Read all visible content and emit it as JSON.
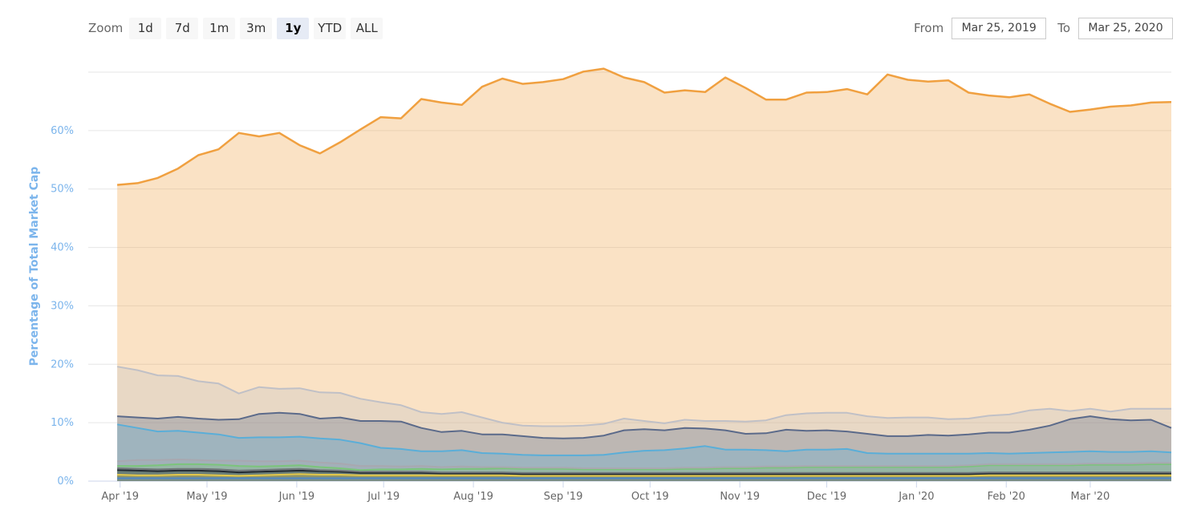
{
  "toolbar": {
    "zoom_label": "Zoom",
    "buttons": [
      "1d",
      "7d",
      "1m",
      "3m",
      "1y",
      "YTD",
      "ALL"
    ],
    "active": "1y"
  },
  "range": {
    "from_label": "From",
    "from_value": "Mar 25, 2019",
    "to_label": "To",
    "to_value": "Mar 25, 2020"
  },
  "chart_data": {
    "type": "area",
    "title": "",
    "ylabel": "Percentage of Total Market Cap",
    "xlabel": "",
    "ylim": [
      0,
      70
    ],
    "yticks": [
      0,
      10,
      20,
      30,
      40,
      50,
      60
    ],
    "ytick_labels": [
      "0%",
      "10%",
      "20%",
      "30%",
      "40%",
      "50%",
      "60%"
    ],
    "x_start": "2019-03-31",
    "x_step_days": 7,
    "x_end": "2020-03-22",
    "x_tick_dates": [
      "2019-04-01",
      "2019-05-01",
      "2019-06-01",
      "2019-07-01",
      "2019-08-01",
      "2019-09-01",
      "2019-10-01",
      "2019-11-01",
      "2019-12-01",
      "2020-01-01",
      "2020-02-01",
      "2020-03-01"
    ],
    "x_tick_labels": [
      "Apr '19",
      "May '19",
      "Jun '19",
      "Jul '19",
      "Aug '19",
      "Sep '19",
      "Oct '19",
      "Nov '19",
      "Dec '19",
      "Jan '20",
      "Feb '20",
      "Mar '20"
    ],
    "grid": true,
    "stacked": true,
    "legend": "none",
    "series": [
      {
        "color": "#f0a040",
        "values": [
          31.1,
          32.0,
          33.8,
          35.5,
          38.7,
          40.1,
          44.6,
          42.9,
          43.8,
          41.6,
          40.9,
          42.9,
          46.1,
          48.8,
          49.1,
          53.6,
          53.3,
          52.6,
          56.6,
          58.9,
          58.5,
          58.9,
          59.4,
          60.6,
          60.8,
          58.4,
          58.0,
          56.6,
          56.4,
          56.3,
          58.8,
          57.1,
          54.9,
          54.0,
          54.9,
          54.9,
          55.4,
          55.1,
          58.8,
          57.8,
          57.5,
          58.0,
          55.8,
          54.8,
          54.3,
          54.1,
          52.2,
          51.2,
          51.2,
          52.2,
          51.9,
          52.4,
          52.5
        ]
      },
      {
        "color": "#c0c0c6",
        "values": [
          8.5,
          8.1,
          7.4,
          7.0,
          6.4,
          6.2,
          4.4,
          4.6,
          4.1,
          4.4,
          4.5,
          4.2,
          3.8,
          3.2,
          2.8,
          2.7,
          3.1,
          3.2,
          2.9,
          2.0,
          1.8,
          2.0,
          2.1,
          2.1,
          2.0,
          2.0,
          1.4,
          1.2,
          1.4,
          1.3,
          1.6,
          2.1,
          2.2,
          2.5,
          3.0,
          3.0,
          3.2,
          3.0,
          3.1,
          3.2,
          3.0,
          2.8,
          2.7,
          2.9,
          3.1,
          3.3,
          2.9,
          1.4,
          1.3,
          1.3,
          2.0,
          1.9,
          3.3
        ]
      },
      {
        "color": "#5b6a8a",
        "values": [
          1.4,
          1.8,
          2.2,
          2.4,
          2.4,
          2.5,
          3.2,
          4.0,
          4.2,
          3.9,
          3.4,
          3.8,
          3.8,
          4.6,
          4.7,
          4.0,
          3.3,
          3.3,
          3.2,
          3.3,
          3.2,
          3.0,
          2.9,
          3.0,
          3.3,
          3.8,
          3.7,
          3.4,
          3.5,
          3.0,
          3.3,
          2.7,
          2.9,
          3.7,
          3.2,
          3.3,
          3.0,
          3.3,
          3.0,
          3.0,
          3.2,
          3.1,
          3.3,
          3.5,
          3.6,
          4.0,
          4.6,
          5.6,
          6.0,
          5.6,
          5.4,
          5.4,
          4.2
        ]
      },
      {
        "color": "#5aaed8",
        "values": [
          6.3,
          5.5,
          4.9,
          4.9,
          4.7,
          4.5,
          3.9,
          4.1,
          4.1,
          4.1,
          4.1,
          4.1,
          3.9,
          3.1,
          3.0,
          2.5,
          2.7,
          2.8,
          2.4,
          2.3,
          2.2,
          2.1,
          2.1,
          2.2,
          2.3,
          2.7,
          3.0,
          3.1,
          3.3,
          3.7,
          3.0,
          3.0,
          2.8,
          2.6,
          2.8,
          2.8,
          2.9,
          2.2,
          2.1,
          2.1,
          2.1,
          2.1,
          2.0,
          1.9,
          1.8,
          1.9,
          2.0,
          2.1,
          2.1,
          2.0,
          2.0,
          2.0,
          1.8
        ]
      },
      {
        "color": "#a8a8b0",
        "values": [
          0.8,
          1.0,
          0.9,
          0.8,
          0.7,
          0.7,
          0.9,
          0.9,
          0.8,
          0.8,
          0.8,
          0.8,
          0.7,
          0.6,
          0.5,
          0.5,
          0.4,
          0.4,
          0.3,
          0.2,
          0.2,
          0.2,
          0.2,
          0.2,
          0.2,
          0.2,
          0.2,
          0.2,
          0.2,
          0.2,
          0.2,
          0.2,
          0.2,
          0.2,
          0.2,
          0.2,
          0.2,
          0.2,
          0.2,
          0.2,
          0.2,
          0.2,
          0.2,
          0.2,
          0.2,
          0.2,
          0.2,
          0.2,
          0.2,
          0.2,
          0.2,
          0.2,
          0.2
        ]
      },
      {
        "color": "#7bc47b",
        "values": [
          0.4,
          0.5,
          0.7,
          0.8,
          0.8,
          0.8,
          0.8,
          0.6,
          0.6,
          0.6,
          0.5,
          0.4,
          0.3,
          0.4,
          0.4,
          0.5,
          0.5,
          0.6,
          0.6,
          0.7,
          0.7,
          0.7,
          0.7,
          0.6,
          0.6,
          0.6,
          0.6,
          0.6,
          0.7,
          0.7,
          0.8,
          0.8,
          0.9,
          0.9,
          1.0,
          1.0,
          1.0,
          1.0,
          1.0,
          1.0,
          1.0,
          1.0,
          1.1,
          1.2,
          1.2,
          1.2,
          1.2,
          1.2,
          1.3,
          1.3,
          1.3,
          1.4,
          1.4
        ]
      },
      {
        "color": "#6e7478",
        "values": [
          0.3,
          0.3,
          0.3,
          0.3,
          0.3,
          0.3,
          0.3,
          0.3,
          0.3,
          0.3,
          0.2,
          0.2,
          0.2,
          0.2,
          0.2,
          0.2,
          0.2,
          0.2,
          0.2,
          0.2,
          0.2,
          0.2,
          0.2,
          0.2,
          0.2,
          0.2,
          0.2,
          0.2,
          0.2,
          0.2,
          0.2,
          0.2,
          0.2,
          0.2,
          0.2,
          0.2,
          0.2,
          0.2,
          0.2,
          0.2,
          0.2,
          0.2,
          0.2,
          0.2,
          0.2,
          0.2,
          0.2,
          0.2,
          0.2,
          0.2,
          0.2,
          0.2,
          0.2
        ]
      },
      {
        "color": "#222a33",
        "values": [
          0.8,
          0.8,
          0.7,
          0.7,
          0.7,
          0.7,
          0.6,
          0.6,
          0.6,
          0.6,
          0.6,
          0.5,
          0.4,
          0.4,
          0.4,
          0.4,
          0.3,
          0.3,
          0.3,
          0.3,
          0.3,
          0.3,
          0.3,
          0.3,
          0.3,
          0.3,
          0.3,
          0.3,
          0.3,
          0.3,
          0.3,
          0.3,
          0.3,
          0.3,
          0.3,
          0.3,
          0.3,
          0.3,
          0.3,
          0.3,
          0.3,
          0.3,
          0.3,
          0.3,
          0.3,
          0.3,
          0.3,
          0.3,
          0.3,
          0.3,
          0.3,
          0.3,
          0.3
        ]
      },
      {
        "color": "#e4c84a",
        "values": [
          0.6,
          0.5,
          0.5,
          0.6,
          0.6,
          0.5,
          0.4,
          0.5,
          0.6,
          0.7,
          0.6,
          0.6,
          0.5,
          0.5,
          0.5,
          0.5,
          0.5,
          0.5,
          0.5,
          0.5,
          0.4,
          0.4,
          0.4,
          0.4,
          0.4,
          0.4,
          0.4,
          0.4,
          0.4,
          0.4,
          0.4,
          0.4,
          0.4,
          0.4,
          0.4,
          0.4,
          0.4,
          0.4,
          0.4,
          0.4,
          0.4,
          0.4,
          0.4,
          0.5,
          0.5,
          0.5,
          0.5,
          0.5,
          0.5,
          0.5,
          0.5,
          0.5,
          0.5
        ]
      },
      {
        "color": "#4f86c6",
        "values": [
          0.5,
          0.5,
          0.5,
          0.5,
          0.5,
          0.5,
          0.5,
          0.5,
          0.5,
          0.5,
          0.5,
          0.5,
          0.5,
          0.5,
          0.5,
          0.5,
          0.5,
          0.5,
          0.5,
          0.5,
          0.5,
          0.5,
          0.5,
          0.5,
          0.5,
          0.5,
          0.5,
          0.5,
          0.5,
          0.5,
          0.5,
          0.5,
          0.5,
          0.5,
          0.5,
          0.5,
          0.5,
          0.5,
          0.5,
          0.5,
          0.5,
          0.5,
          0.5,
          0.5,
          0.5,
          0.5,
          0.5,
          0.5,
          0.5,
          0.5,
          0.5,
          0.5,
          0.5
        ]
      }
    ]
  }
}
